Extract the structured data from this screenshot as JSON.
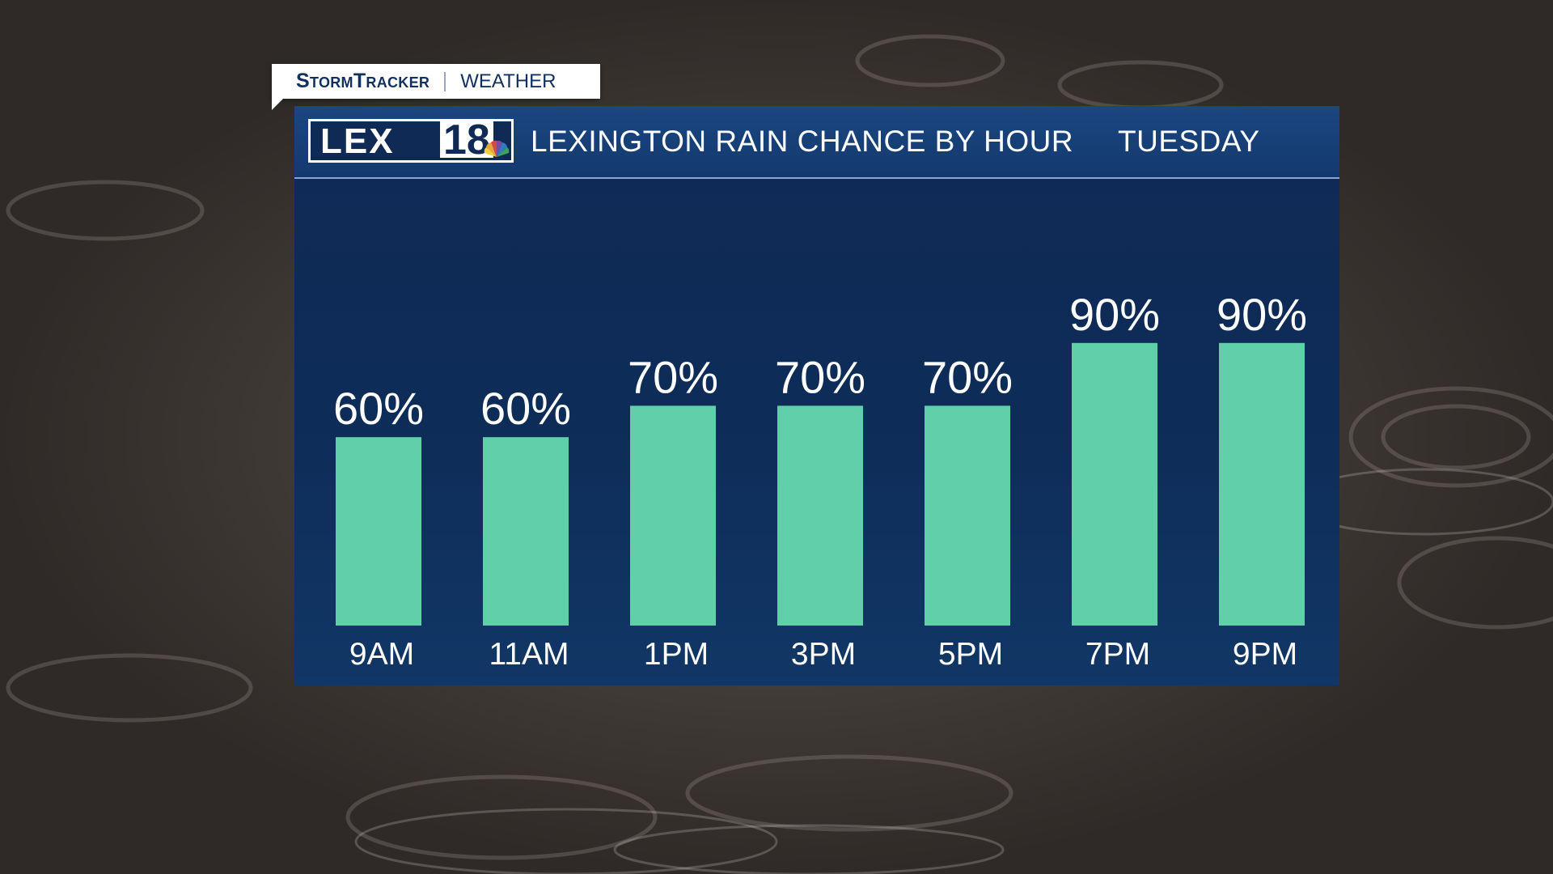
{
  "brand": {
    "tag_name": "StormTracker",
    "tag_section": "WEATHER",
    "logo_text": "LEX",
    "logo_number": "18"
  },
  "header": {
    "title": "LEXINGTON RAIN CHANCE BY HOUR",
    "day": "TUESDAY"
  },
  "colors": {
    "bar": "#62cfab",
    "panel": "#0f2a55",
    "header": "#1b4680",
    "text": "#ffffff"
  },
  "chart_data": {
    "type": "bar",
    "title": "LEXINGTON RAIN CHANCE BY HOUR",
    "subtitle": "TUESDAY",
    "categories": [
      "9AM",
      "11AM",
      "1PM",
      "3PM",
      "5PM",
      "7PM",
      "9PM"
    ],
    "values": [
      60,
      60,
      70,
      70,
      70,
      90,
      90
    ],
    "value_labels": [
      "60%",
      "60%",
      "70%",
      "70%",
      "70%",
      "90%",
      "90%"
    ],
    "unit": "%",
    "xlabel": "",
    "ylabel": "",
    "grid": false,
    "legend": "none"
  }
}
